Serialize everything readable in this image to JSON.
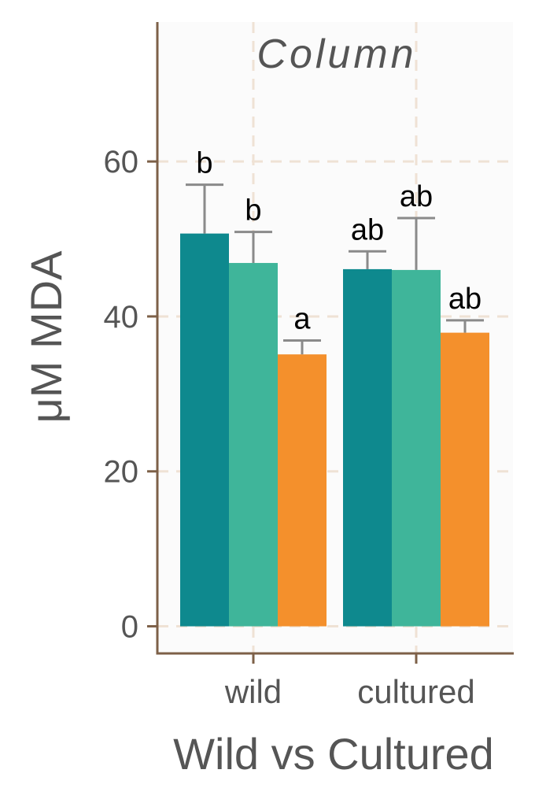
{
  "chart_data": {
    "type": "bar",
    "title": "Column",
    "xlabel": "Wild vs Cultured",
    "ylabel": "μM  MDA",
    "categories": [
      "wild",
      "cultured"
    ],
    "ylim": [
      -3.5,
      78
    ],
    "yticks": [
      0,
      20,
      40,
      60
    ],
    "grid": true,
    "legend": "none",
    "series": [
      {
        "color": "#0E898E",
        "values": [
          50.7,
          46.1
        ],
        "errors": [
          6.3,
          2.3
        ],
        "labels": [
          "b",
          "ab"
        ]
      },
      {
        "color": "#3FB59A",
        "values": [
          46.9,
          46.0
        ],
        "errors": [
          4.0,
          6.7
        ],
        "labels": [
          "b",
          "ab"
        ]
      },
      {
        "color": "#F4902C",
        "values": [
          35.1,
          37.9
        ],
        "errors": [
          1.8,
          1.6
        ],
        "labels": [
          "a",
          "ab"
        ]
      }
    ]
  }
}
